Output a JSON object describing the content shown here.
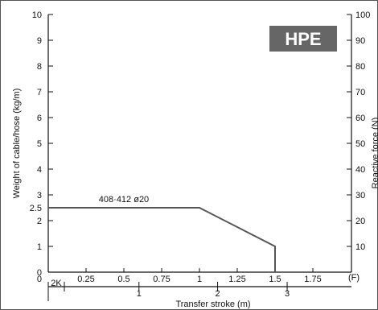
{
  "chart_data": {
    "type": "line",
    "title": "",
    "xlabel": "Transfer stroke (m)",
    "ylabel": "Weight of cable/hose (kg/m)",
    "ylabel_right": "Reactive force (N)",
    "x_unit_marker": "(F)",
    "xlim": [
      0,
      2.0
    ],
    "ylim": [
      0,
      10
    ],
    "x_ticks": [
      "0",
      "0.25",
      "0.5",
      "0.75",
      "1",
      "1.25",
      "1.5",
      "1.75"
    ],
    "y_ticks": [
      "0",
      "1",
      "2",
      "2.5",
      "3",
      "4",
      "5",
      "6",
      "7",
      "8",
      "9",
      "10"
    ],
    "y_right_ticks": [
      "10",
      "20",
      "30",
      "40",
      "50",
      "60",
      "70",
      "80",
      "90",
      "100"
    ],
    "secondary_x": {
      "label_2k": "2K",
      "ticks": [
        "1",
        "2",
        "3"
      ],
      "tick_positions_x": [
        0.6,
        1.12,
        1.58
      ]
    },
    "series": [
      {
        "name": "408·412 ø20",
        "color": "#555555",
        "points": [
          {
            "x": 0,
            "y": 2.5
          },
          {
            "x": 1.0,
            "y": 2.5
          },
          {
            "x": 1.5,
            "y": 1.0
          },
          {
            "x": 1.5,
            "y": 0
          }
        ]
      }
    ],
    "grid": false,
    "legend": "none"
  },
  "badge": {
    "text": "HPE",
    "bg_color": "#666666",
    "text_color": "#ffffff"
  }
}
